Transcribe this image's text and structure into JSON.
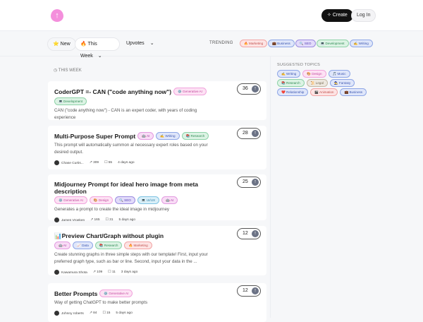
{
  "header": {
    "create_label": "Create",
    "login_label": "Log In"
  },
  "filters": {
    "new_label": "New",
    "period_label": "This Week",
    "sort_label": "Upvotes",
    "trending_label": "TRENDING"
  },
  "colors": {
    "pink": [
      "#fde4e4",
      "#f2a4a4",
      "#c0504d"
    ],
    "blue": [
      "#dfe6fa",
      "#8ea6e6",
      "#3d57b0"
    ],
    "purple": [
      "#e2dbfa",
      "#9b8ce0",
      "#5a45b5"
    ],
    "green": [
      "#dcf3e4",
      "#8ed2a8",
      "#2f8a55"
    ],
    "rose": [
      "#fde2f4",
      "#f1a3dc",
      "#c34a9e"
    ],
    "beige": [
      "#ede8df",
      "#c4b9a5",
      "#7a6d55"
    ],
    "magenta": [
      "#f9dcf6",
      "#e29be0",
      "#a03fa0"
    ],
    "cyan": [
      "#d9eff8",
      "#7fc3e3",
      "#2f7ea5"
    ]
  },
  "trending": [
    {
      "label": "🔥 Marketing",
      "c": "pink"
    },
    {
      "label": "💼 Business",
      "c": "blue"
    },
    {
      "label": "🔍 SEO",
      "c": "purple"
    },
    {
      "label": "💻 Development",
      "c": "green"
    },
    {
      "label": "✍️ Writing",
      "c": "blue"
    }
  ],
  "section_label": "THIS WEEK",
  "prompts": [
    {
      "title": "CoderGPT =- CAN (\"code anything now\")",
      "tags": [
        {
          "label": "⚙️ Generative AI",
          "c": "rose"
        },
        {
          "label": "💻 Development",
          "c": "green"
        }
      ],
      "inline": true,
      "desc": "CAN (\"code anything now\") - CAN is an expert coder, with years of coding experience",
      "author": "Kody Wildfeuer",
      "shares": "382",
      "saves": "82",
      "time": "5 days ago",
      "votes": "36"
    },
    {
      "title": "Multi-Purpose Super Prompt",
      "tags": [
        {
          "label": "🤖 AI",
          "c": "magenta"
        },
        {
          "label": "✍️ Writing",
          "c": "blue"
        },
        {
          "label": "📚 Research",
          "c": "green"
        }
      ],
      "inline": true,
      "desc": "This prompt will automatically summon al necessary expert roles based on your desired output.",
      "author": "Chase Curtis...",
      "shares": "309",
      "saves": "55",
      "time": "4 days ago",
      "votes": "28"
    },
    {
      "title": "Midjourney Prompt for ideal hero image from meta description",
      "tags": [
        {
          "label": "⚙️ Generative AI",
          "c": "rose"
        },
        {
          "label": "🎨 Design",
          "c": "rose"
        },
        {
          "label": "🔍 SEO",
          "c": "purple"
        },
        {
          "label": "💻 UI/UX",
          "c": "cyan"
        },
        {
          "label": "🤖 AI",
          "c": "magenta"
        }
      ],
      "inline": false,
      "desc": "Generates a prompt to create the ideal image in midjourney",
      "author": "James Vroeken",
      "shares": "165",
      "saves": "31",
      "time": "5 days ago",
      "votes": "25"
    },
    {
      "title": "📊Preview Chart/Graph without plugin",
      "tags": [
        {
          "label": "🤖 AI",
          "c": "magenta"
        },
        {
          "label": "📈 Data",
          "c": "blue"
        },
        {
          "label": "📚 Research",
          "c": "green"
        },
        {
          "label": "🔥 Marketing",
          "c": "pink"
        }
      ],
      "inline": false,
      "desc": "Create stunning graphs in three simple steps with our template! First, input your preferred graph type, such as bar or line. Second, input your data in the ...",
      "author": "Kawamura Shota",
      "shares": "109",
      "saves": "11",
      "time": "3 days ago",
      "votes": "12"
    },
    {
      "title": "Better Prompts",
      "tags": [
        {
          "label": "⚙️ Generative AI",
          "c": "rose"
        }
      ],
      "inline": true,
      "desc": "Way of getting ChatGPT to make better prompts",
      "author": "Johnny roberts",
      "shares": "84",
      "saves": "15",
      "time": "5 days ago",
      "votes": "12"
    }
  ],
  "sidebar": {
    "label": "SUGGESTED TOPICS",
    "topics": [
      {
        "label": "✍️ Writing",
        "c": "blue"
      },
      {
        "label": "🎨 Design",
        "c": "rose"
      },
      {
        "label": "🎵 Music",
        "c": "blue"
      },
      {
        "label": "📚 Research",
        "c": "green"
      },
      {
        "label": "📜 Legal",
        "c": "beige"
      },
      {
        "label": "🧙 Fantasy",
        "c": "blue"
      },
      {
        "label": "❤️ Relationship",
        "c": "blue"
      },
      {
        "label": "🎬 Animation",
        "c": "pink"
      },
      {
        "label": "💼 Business",
        "c": "blue"
      }
    ]
  }
}
